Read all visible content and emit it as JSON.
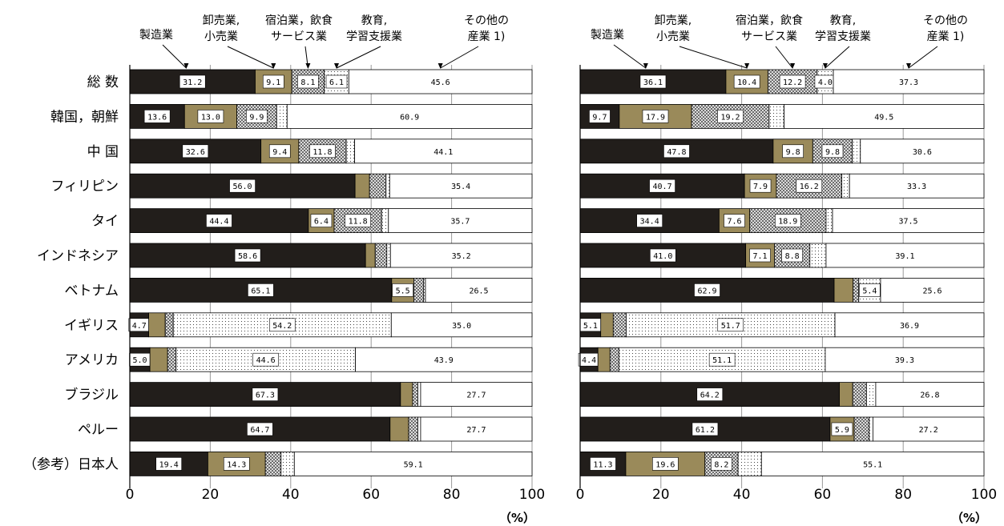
{
  "chart_data": {
    "type": "bar",
    "stacked": true,
    "orientation": "horizontal",
    "xlim": [
      0,
      100
    ],
    "x_ticks": [
      "0",
      "20",
      "40",
      "60",
      "80",
      "100"
    ],
    "unit": "（%）",
    "categories": [
      "総 数",
      "韓国，朝鮮",
      "中 国",
      "フィリピン",
      "タイ",
      "インドネシア",
      "ベトナム",
      "イギリス",
      "アメリカ",
      "ブラジル",
      "ペルー",
      "（参考）日本人"
    ],
    "series_labels": [
      [
        "製造業"
      ],
      [
        "卸売業,",
        "小売業"
      ],
      [
        "宿泊業，飲食",
        "サービス業"
      ],
      [
        "教育,",
        "学習支援業"
      ],
      [
        "その他の",
        "産業 1)"
      ]
    ],
    "series_colors": [
      "#221e1b",
      "#9a8a5a",
      "crosshatch",
      "dots",
      "#ffffff"
    ],
    "panels": [
      {
        "values": [
          [
            31.2,
            9.1,
            8.1,
            6.1,
            45.6
          ],
          [
            13.6,
            13.0,
            9.9,
            2.6,
            60.9
          ],
          [
            32.6,
            9.4,
            11.8,
            2.1,
            44.1
          ],
          [
            56.0,
            3.6,
            4.1,
            0.9,
            35.4
          ],
          [
            44.4,
            6.4,
            11.8,
            1.7,
            35.7
          ],
          [
            58.6,
            2.4,
            2.9,
            0.9,
            35.2
          ],
          [
            65.1,
            5.5,
            2.4,
            0.5,
            26.5
          ],
          [
            4.7,
            4.1,
            2.0,
            54.2,
            35.0
          ],
          [
            5.0,
            4.4,
            2.1,
            44.6,
            43.9
          ],
          [
            67.3,
            3.0,
            1.3,
            0.7,
            27.7
          ],
          [
            64.7,
            4.6,
            2.3,
            0.7,
            27.7
          ],
          [
            19.4,
            14.3,
            3.9,
            3.3,
            59.1
          ]
        ],
        "labels": [
          [
            "31.2",
            "9.1",
            "8.1",
            "6.1",
            "45.6"
          ],
          [
            "13.6",
            "13.0",
            "9.9",
            "",
            "60.9"
          ],
          [
            "32.6",
            "9.4",
            "11.8",
            "",
            "44.1"
          ],
          [
            "56.0",
            "",
            "",
            "",
            "35.4"
          ],
          [
            "44.4",
            "6.4",
            "11.8",
            "",
            "35.7"
          ],
          [
            "58.6",
            "",
            "",
            "",
            "35.2"
          ],
          [
            "65.1",
            "5.5",
            "",
            "",
            "26.5"
          ],
          [
            "4.7",
            "",
            "",
            "54.2",
            "35.0"
          ],
          [
            "5.0",
            "",
            "",
            "44.6",
            "43.9"
          ],
          [
            "67.3",
            "",
            "",
            "",
            "27.7"
          ],
          [
            "64.7",
            "",
            "",
            "",
            "27.7"
          ],
          [
            "19.4",
            "14.3",
            "",
            "",
            "59.1"
          ]
        ]
      },
      {
        "values": [
          [
            36.1,
            10.4,
            12.2,
            4.0,
            37.3
          ],
          [
            9.7,
            17.9,
            19.2,
            3.7,
            49.5
          ],
          [
            47.8,
            9.8,
            9.8,
            2.0,
            30.6
          ],
          [
            40.7,
            7.9,
            16.2,
            1.9,
            33.3
          ],
          [
            34.4,
            7.6,
            18.9,
            1.6,
            37.5
          ],
          [
            41.0,
            7.1,
            8.8,
            4.0,
            39.1
          ],
          [
            62.9,
            4.7,
            1.4,
            5.4,
            25.6
          ],
          [
            5.1,
            3.1,
            3.2,
            51.7,
            36.9
          ],
          [
            4.4,
            3.0,
            2.2,
            51.1,
            39.3
          ],
          [
            64.2,
            3.3,
            3.4,
            2.3,
            26.8
          ],
          [
            61.2,
            5.9,
            3.7,
            0.9,
            27.2
          ],
          [
            11.3,
            19.6,
            8.2,
            5.8,
            55.1
          ]
        ],
        "labels": [
          [
            "36.1",
            "10.4",
            "12.2",
            "4.0",
            "37.3"
          ],
          [
            "9.7",
            "17.9",
            "19.2",
            "",
            "49.5"
          ],
          [
            "47.8",
            "9.8",
            "9.8",
            "",
            "30.6"
          ],
          [
            "40.7",
            "7.9",
            "16.2",
            "",
            "33.3"
          ],
          [
            "34.4",
            "7.6",
            "18.9",
            "",
            "37.5"
          ],
          [
            "41.0",
            "7.1",
            "8.8",
            "",
            "39.1"
          ],
          [
            "62.9",
            "",
            "",
            "5.4",
            "25.6"
          ],
          [
            "5.1",
            "",
            "",
            "51.7",
            "36.9"
          ],
          [
            "4.4",
            "",
            "",
            "51.1",
            "39.3"
          ],
          [
            "64.2",
            "",
            "",
            "",
            "26.8"
          ],
          [
            "61.2",
            "5.9",
            "",
            "",
            "27.2"
          ],
          [
            "11.3",
            "19.6",
            "8.2",
            "",
            "55.1"
          ]
        ]
      }
    ]
  }
}
